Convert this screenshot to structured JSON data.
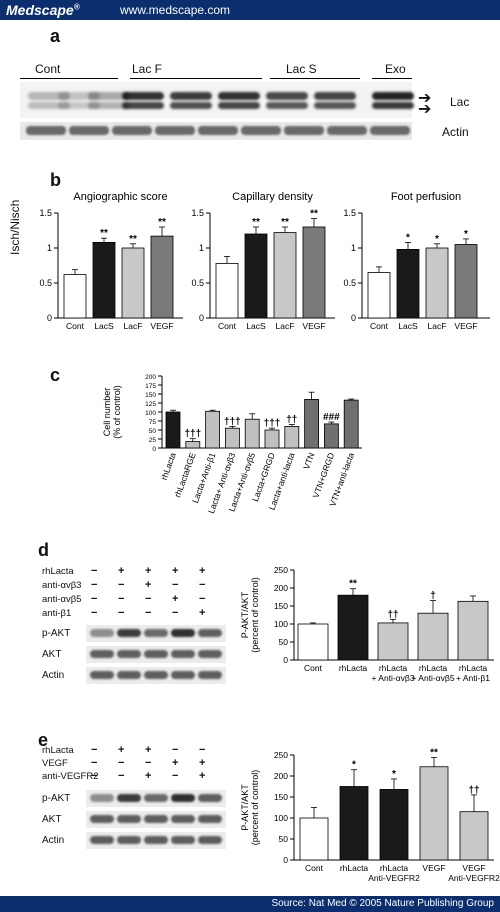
{
  "header": {
    "brand": "Medscape",
    "brand_mark": "®",
    "url": "www.medscape.com"
  },
  "footer": {
    "source": "Source: Nat Med © 2005 Nature Publishing Group"
  },
  "panels": {
    "a": {
      "letter": "a",
      "groups": [
        "Cont",
        "Lac F",
        "Lac S",
        "Exo"
      ],
      "bands": [
        "Lac",
        "Actin"
      ]
    },
    "b": {
      "letter": "b",
      "ylabel": "Isch/Nisch"
    },
    "c": {
      "letter": "c"
    },
    "d": {
      "letter": "d",
      "conditions": [
        "rhLacta",
        "anti-αvβ3",
        "anti-αvβ5",
        "anti-β1"
      ],
      "signs": [
        [
          "−",
          "+",
          "+",
          "+",
          "+"
        ],
        [
          "−",
          "−",
          "+",
          "−",
          "−"
        ],
        [
          "−",
          "−",
          "−",
          "+",
          "−"
        ],
        [
          "−",
          "−",
          "−",
          "−",
          "+"
        ]
      ],
      "blots": [
        "p-AKT",
        "AKT",
        "Actin"
      ]
    },
    "e": {
      "letter": "e",
      "conditions": [
        "rhLacta",
        "VEGF",
        "anti-VEGFR2"
      ],
      "signs": [
        [
          "−",
          "+",
          "+",
          "−",
          "−"
        ],
        [
          "−",
          "−",
          "−",
          "+",
          "+"
        ],
        [
          "−",
          "−",
          "+",
          "−",
          "+"
        ]
      ],
      "blots": [
        "p-AKT",
        "AKT",
        "Actin"
      ]
    }
  },
  "chart_data": [
    {
      "type": "bar",
      "panel": "b",
      "title": "Angiographic score",
      "categories": [
        "Cont",
        "LacS",
        "LacF",
        "VEGF"
      ],
      "values": [
        0.62,
        1.08,
        1.0,
        1.17
      ],
      "errors": [
        0.07,
        0.06,
        0.06,
        0.13
      ],
      "annotations": [
        "",
        "**",
        "**",
        "**"
      ],
      "fills": [
        "#ffffff",
        "#1a1a1a",
        "#c8c8c8",
        "#7a7a7a"
      ],
      "yticks": [
        0,
        0.5,
        1,
        1.5
      ],
      "ylim": [
        0,
        1.5
      ],
      "ylabel": "Isch/Nisch"
    },
    {
      "type": "bar",
      "panel": "b",
      "title": "Capillary density",
      "categories": [
        "Cont",
        "LacS",
        "LacF",
        "VEGF"
      ],
      "values": [
        0.78,
        1.2,
        1.22,
        1.3
      ],
      "errors": [
        0.1,
        0.1,
        0.08,
        0.12
      ],
      "annotations": [
        "",
        "**",
        "**",
        "**"
      ],
      "fills": [
        "#ffffff",
        "#1a1a1a",
        "#c8c8c8",
        "#7a7a7a"
      ],
      "yticks": [
        0,
        0.5,
        1,
        1.5
      ],
      "ylim": [
        0,
        1.5
      ]
    },
    {
      "type": "bar",
      "panel": "b",
      "title": "Foot perfusion",
      "categories": [
        "Cont",
        "LacS",
        "LacF",
        "VEGF"
      ],
      "values": [
        0.65,
        0.98,
        1.0,
        1.05
      ],
      "errors": [
        0.08,
        0.1,
        0.06,
        0.08
      ],
      "annotations": [
        "",
        "*",
        "*",
        "*"
      ],
      "fills": [
        "#ffffff",
        "#1a1a1a",
        "#c8c8c8",
        "#7a7a7a"
      ],
      "yticks": [
        0,
        0.5,
        1,
        1.5
      ],
      "ylim": [
        0,
        1.5
      ]
    },
    {
      "type": "bar",
      "panel": "c",
      "ylabel": "Cell number (% of control)",
      "categories": [
        "rhLacta",
        "rhLactaRGE",
        "Lacta+Anti-β1",
        "Lacta+ Anti-αvβ3",
        "Lacta+Anti-αvβ5",
        "Lacta+GRGD",
        "Lacta+anti-lacta",
        "VTN",
        "VTN+GRGD",
        "VTN+anti-lacta"
      ],
      "values": [
        100,
        18,
        102,
        55,
        80,
        50,
        60,
        135,
        67,
        133
      ],
      "errors": [
        5,
        8,
        3,
        5,
        15,
        5,
        5,
        20,
        5,
        3
      ],
      "annotations": [
        "",
        "†††",
        "",
        "†††",
        "",
        "†††",
        "††",
        "",
        "###",
        ""
      ],
      "fills": [
        "#1a1a1a",
        "#c0c0c0",
        "#c0c0c0",
        "#c0c0c0",
        "#c0c0c0",
        "#c0c0c0",
        "#c0c0c0",
        "#707070",
        "#707070",
        "#707070"
      ],
      "yticks": [
        0,
        25,
        50,
        75,
        100,
        125,
        150,
        175,
        200
      ],
      "ylim": [
        0,
        200
      ]
    },
    {
      "type": "bar",
      "panel": "d",
      "ylabel": "P-AKT/AKT (percent of control)",
      "categories": [
        "Cont",
        "rhLacta",
        "rhLacta + Anti-αvβ3",
        "rhLacta + Anti-αvβ5",
        "rhLacta + Anti-β1"
      ],
      "values": [
        100,
        180,
        103,
        130,
        163
      ],
      "errors": [
        3,
        18,
        10,
        35,
        15
      ],
      "annotations": [
        "",
        "**",
        "††",
        "†",
        ""
      ],
      "fills": [
        "#ffffff",
        "#1a1a1a",
        "#c8c8c8",
        "#c8c8c8",
        "#c8c8c8"
      ],
      "yticks": [
        0,
        50,
        100,
        150,
        200,
        250
      ],
      "ylim": [
        0,
        250
      ]
    },
    {
      "type": "bar",
      "panel": "e",
      "ylabel": "P-AKT/AKT (percent of control)",
      "categories": [
        "Cont",
        "rhLacta",
        "rhLacta Anti-VEGFR2",
        "VEGF",
        "VEGF Anti-VEGFR2"
      ],
      "values": [
        100,
        175,
        168,
        222,
        115
      ],
      "errors": [
        25,
        40,
        25,
        22,
        40
      ],
      "annotations": [
        "",
        "*",
        "*",
        "**",
        "††"
      ],
      "fills": [
        "#ffffff",
        "#1a1a1a",
        "#1a1a1a",
        "#c8c8c8",
        "#c8c8c8"
      ],
      "yticks": [
        0,
        50,
        100,
        150,
        200,
        250
      ],
      "ylim": [
        0,
        250
      ]
    }
  ]
}
